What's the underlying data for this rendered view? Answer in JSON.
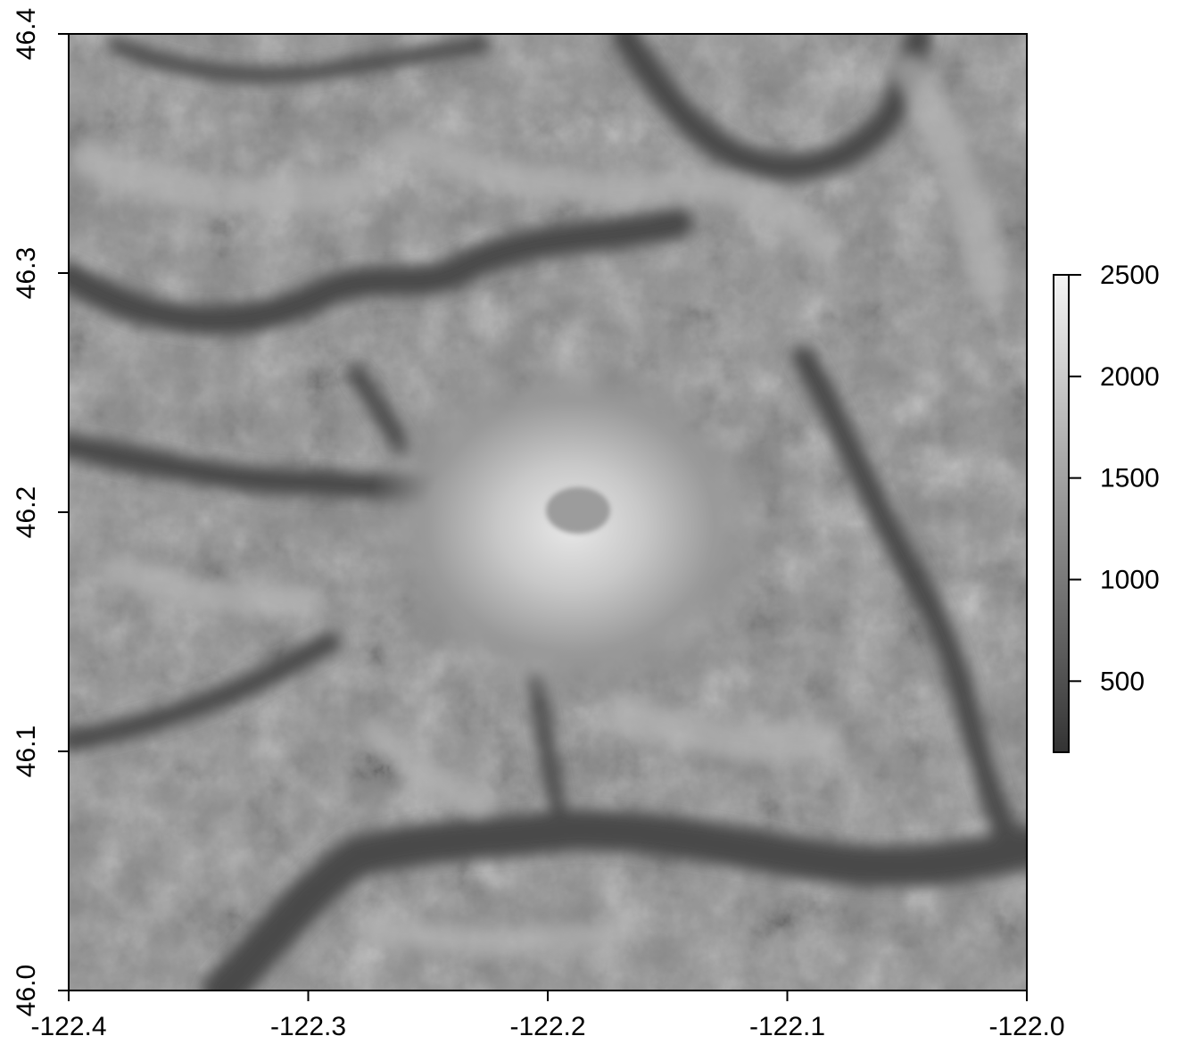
{
  "chart_data": {
    "type": "heatmap",
    "title": "",
    "xlabel": "",
    "ylabel": "",
    "xlim": [
      -122.4,
      -122.0
    ],
    "ylim": [
      46.0,
      46.4
    ],
    "x_ticks": [
      "-122.4",
      "-122.3",
      "-122.2",
      "-122.1",
      "-122.0"
    ],
    "y_ticks": [
      "46.0",
      "46.1",
      "46.2",
      "46.3",
      "46.4"
    ],
    "colorbar": {
      "range": [
        150,
        2500
      ],
      "ticks": [
        "500",
        "1000",
        "1500",
        "2000",
        "2500"
      ],
      "color_low": "#333333",
      "color_high": "#f5f5f5"
    },
    "features": {
      "peak": {
        "x": -122.19,
        "y": 46.195,
        "value": 2500
      },
      "valleys": [
        {
          "x": -122.3,
          "y": 46.03,
          "value": 300
        },
        {
          "x": -122.05,
          "y": 46.05,
          "value": 450
        },
        {
          "x": -122.35,
          "y": 46.28,
          "value": 600
        },
        {
          "x": -122.06,
          "y": 46.38,
          "value": 600
        }
      ],
      "summary": "grayscale elevation raster with a central volcanic peak and surrounding river valleys"
    }
  }
}
